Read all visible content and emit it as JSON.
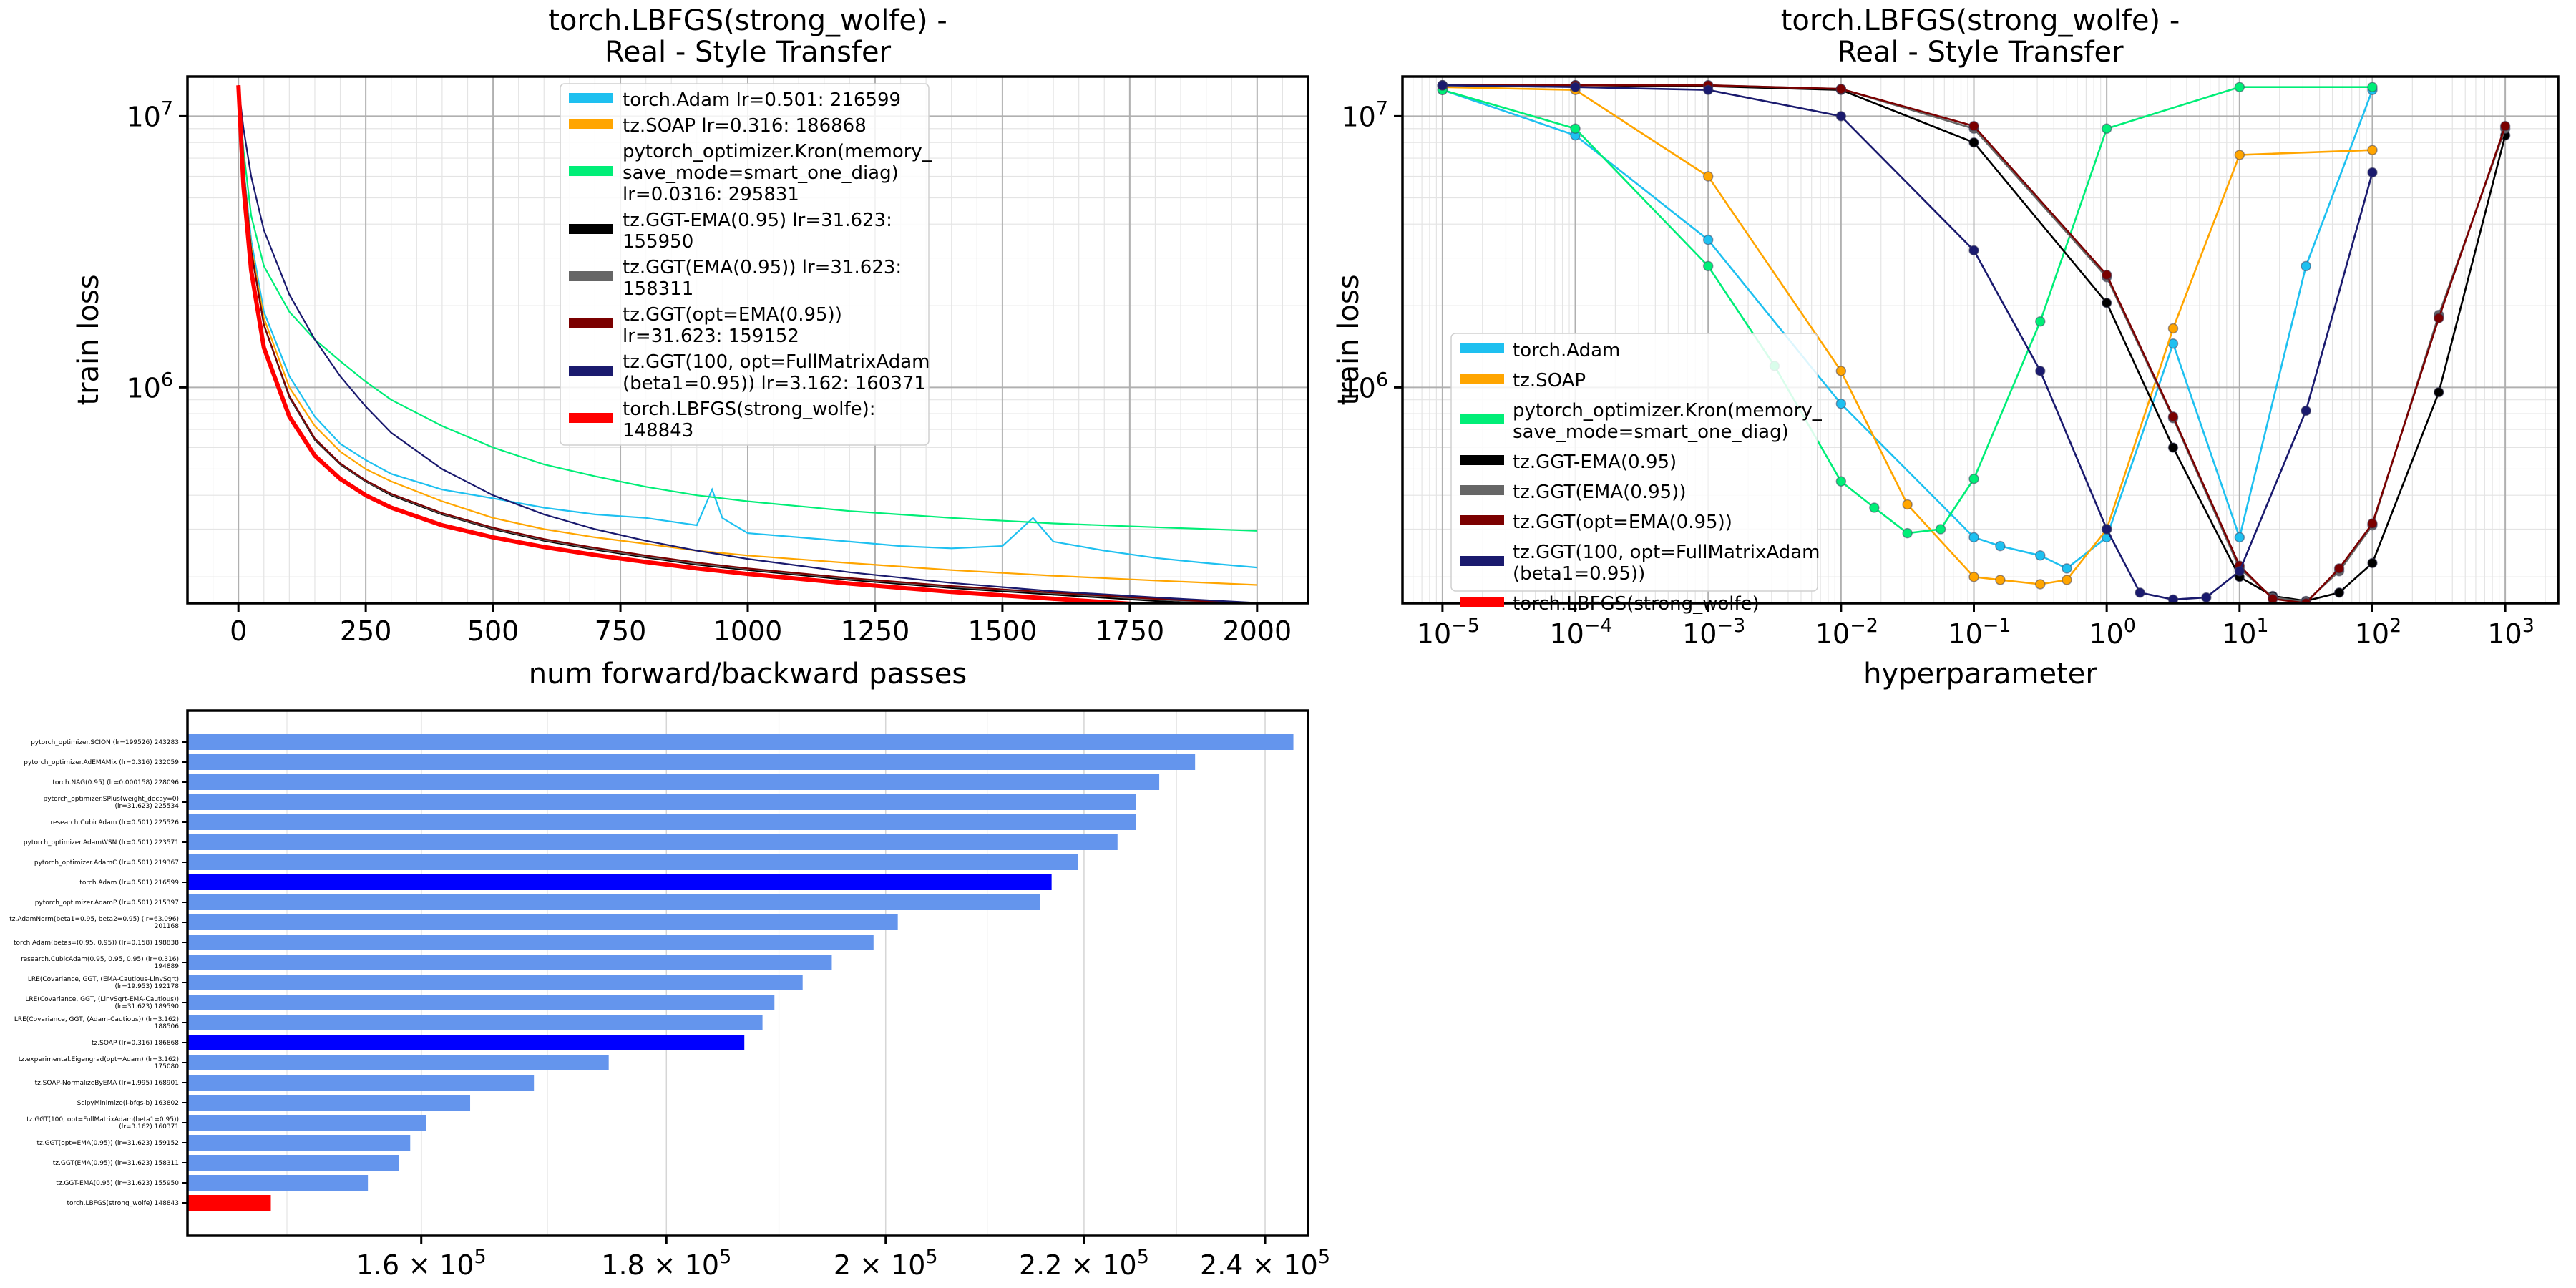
{
  "chart_data": [
    {
      "type": "line",
      "title": "torch.LBFGS(strong_wolfe) -\nReal - Style Transfer",
      "xlabel": "num forward/backward passes",
      "ylabel": "train loss",
      "yscale": "log",
      "xlim": [
        -100,
        2100
      ],
      "ylim": [
        160000,
        14000000
      ],
      "x_ticks": [
        0,
        250,
        500,
        750,
        1000,
        1250,
        1500,
        1750,
        2000
      ],
      "y_ticks": [
        {
          "value": 1000000,
          "label": "10",
          "exp": "6"
        },
        {
          "value": 10000000,
          "label": "10",
          "exp": "7"
        }
      ],
      "grid": true,
      "legend_position": "upper-center",
      "series": [
        {
          "name": "torch.Adam lr=0.501: 216599",
          "color": "#1ec0f0",
          "x": [
            0,
            10,
            25,
            50,
            100,
            150,
            200,
            250,
            300,
            400,
            500,
            600,
            700,
            800,
            900,
            930,
            950,
            1000,
            1100,
            1200,
            1300,
            1400,
            1500,
            1560,
            1600,
            1700,
            1800,
            1900,
            2000
          ],
          "y": [
            13000000,
            6500000,
            3500000,
            1900000,
            1100000,
            780000,
            620000,
            540000,
            480000,
            420000,
            390000,
            360000,
            340000,
            330000,
            310000,
            420000,
            330000,
            290000,
            280000,
            270000,
            260000,
            255000,
            260000,
            330000,
            270000,
            250000,
            235000,
            225000,
            216599
          ]
        },
        {
          "name": "tz.SOAP lr=0.316: 186868",
          "color": "#ffa500",
          "x": [
            0,
            10,
            25,
            50,
            100,
            150,
            200,
            250,
            300,
            400,
            500,
            600,
            700,
            800,
            900,
            1000,
            1200,
            1400,
            1600,
            1800,
            2000
          ],
          "y": [
            13000000,
            6400000,
            3300000,
            1800000,
            1000000,
            720000,
            580000,
            500000,
            450000,
            380000,
            330000,
            300000,
            280000,
            265000,
            250000,
            240000,
            225000,
            212000,
            202000,
            194000,
            186868
          ]
        },
        {
          "name": "pytorch_optimizer.Kron(memory_\nsave_mode=smart_one_diag)\nlr=0.0316: 295831",
          "color": "#00ee77",
          "x": [
            0,
            10,
            25,
            50,
            100,
            150,
            200,
            250,
            300,
            400,
            500,
            600,
            700,
            800,
            900,
            1000,
            1200,
            1400,
            1600,
            1800,
            2000
          ],
          "y": [
            13000000,
            7500000,
            4300000,
            2800000,
            1900000,
            1500000,
            1250000,
            1050000,
            900000,
            720000,
            600000,
            520000,
            470000,
            430000,
            400000,
            380000,
            350000,
            330000,
            315000,
            305000,
            295831
          ]
        },
        {
          "name": "tz.GGT-EMA(0.95) lr=31.623:\n155950",
          "color": "#000000",
          "x": [
            0,
            10,
            25,
            50,
            100,
            150,
            200,
            250,
            300,
            400,
            500,
            600,
            700,
            800,
            900,
            1000,
            1200,
            1400,
            1600,
            1800,
            2000
          ],
          "y": [
            13000000,
            6300000,
            3200000,
            1700000,
            920000,
            640000,
            520000,
            450000,
            400000,
            340000,
            300000,
            272000,
            252000,
            236000,
            222000,
            212000,
            195000,
            182000,
            172000,
            163000,
            155950
          ]
        },
        {
          "name": "tz.GGT(EMA(0.95)) lr=31.623:\n158311",
          "color": "#666666",
          "x": [
            0,
            10,
            25,
            50,
            100,
            150,
            200,
            250,
            300,
            400,
            500,
            600,
            700,
            800,
            900,
            1000,
            1200,
            1400,
            1600,
            1800,
            2000
          ],
          "y": [
            13000000,
            6300000,
            3200000,
            1700000,
            925000,
            645000,
            523000,
            452000,
            403000,
            342000,
            302000,
            274000,
            254000,
            238000,
            224000,
            214000,
            197000,
            184000,
            174000,
            165000,
            158311
          ]
        },
        {
          "name": "tz.GGT(opt=EMA(0.95))\nlr=31.623: 159152",
          "color": "#7b0000",
          "x": [
            0,
            10,
            25,
            50,
            100,
            150,
            200,
            250,
            300,
            400,
            500,
            600,
            700,
            800,
            900,
            1000,
            1200,
            1400,
            1600,
            1800,
            2000
          ],
          "y": [
            13000000,
            6300000,
            3200000,
            1700000,
            930000,
            648000,
            525000,
            454000,
            405000,
            344000,
            304000,
            276000,
            256000,
            240000,
            226000,
            215000,
            198000,
            185000,
            175000,
            166000,
            159152
          ]
        },
        {
          "name": "tz.GGT(100, opt=FullMatrixAdam\n(beta1=0.95)) lr=3.162: 160371",
          "color": "#1a1a6e",
          "x": [
            0,
            10,
            25,
            50,
            100,
            150,
            200,
            250,
            300,
            400,
            500,
            600,
            700,
            800,
            900,
            1000,
            1200,
            1400,
            1600,
            1800,
            2000
          ],
          "y": [
            13000000,
            9000000,
            6000000,
            3800000,
            2200000,
            1500000,
            1100000,
            850000,
            680000,
            500000,
            400000,
            340000,
            300000,
            272000,
            250000,
            233000,
            208000,
            190000,
            177000,
            168000,
            160371
          ]
        },
        {
          "name": "torch.LBFGS(strong_wolfe):\n148843",
          "color": "#ff0000",
          "x": [
            0,
            10,
            25,
            50,
            100,
            150,
            200,
            250,
            300,
            400,
            500,
            600,
            700,
            800,
            900,
            1000,
            1200,
            1400,
            1600,
            1800,
            2000
          ],
          "y": [
            13000000,
            5500000,
            2700000,
            1400000,
            780000,
            560000,
            460000,
            400000,
            360000,
            310000,
            280000,
            258000,
            241000,
            227000,
            215000,
            205000,
            189000,
            176000,
            166000,
            157000,
            148843
          ]
        }
      ]
    },
    {
      "type": "line",
      "title": "torch.LBFGS(strong_wolfe) -\nReal - Style Transfer",
      "xlabel": "hyperparameter",
      "ylabel": "train loss",
      "xscale": "log",
      "yscale": "log",
      "xlim": [
        5e-06,
        2500
      ],
      "ylim": [
        160000,
        14000000
      ],
      "x_ticks": [
        {
          "value": 1e-05,
          "label": "10",
          "exp": "−5"
        },
        {
          "value": 0.0001,
          "label": "10",
          "exp": "−4"
        },
        {
          "value": 0.001,
          "label": "10",
          "exp": "−3"
        },
        {
          "value": 0.01,
          "label": "10",
          "exp": "−2"
        },
        {
          "value": 0.1,
          "label": "10",
          "exp": "−1"
        },
        {
          "value": 1,
          "label": "10",
          "exp": "0"
        },
        {
          "value": 10,
          "label": "10",
          "exp": "1"
        },
        {
          "value": 100,
          "label": "10",
          "exp": "2"
        },
        {
          "value": 1000,
          "label": "10",
          "exp": "3"
        }
      ],
      "y_ticks": [
        {
          "value": 1000000,
          "label": "10",
          "exp": "6"
        },
        {
          "value": 10000000,
          "label": "10",
          "exp": "7"
        }
      ],
      "grid": true,
      "legend_position": "lower-left",
      "series": [
        {
          "name": "torch.Adam",
          "color": "#1ec0f0",
          "x": [
            1e-05,
            0.0001,
            0.001,
            0.01,
            0.1,
            0.158,
            0.316,
            0.501,
            1,
            3.162,
            10,
            31.623,
            100
          ],
          "y": [
            12500000,
            8500000,
            3500000,
            870000,
            280000,
            260000,
            240000,
            215000,
            280000,
            1450000,
            280000,
            2800000,
            12500000
          ]
        },
        {
          "name": "tz.SOAP",
          "color": "#ffa500",
          "x": [
            1e-05,
            0.0001,
            0.001,
            0.01,
            0.0316,
            0.1,
            0.158,
            0.316,
            0.501,
            1,
            3.162,
            10,
            100
          ],
          "y": [
            12800000,
            12500000,
            6000000,
            1150000,
            370000,
            200000,
            195000,
            188000,
            195000,
            300000,
            1650000,
            7200000,
            7500000
          ]
        },
        {
          "name": "pytorch_optimizer.Kron(memory_\nsave_mode=smart_one_diag)",
          "color": "#00ee77",
          "x": [
            1e-05,
            0.0001,
            0.001,
            0.00316,
            0.01,
            0.0178,
            0.0316,
            0.0562,
            0.1,
            0.316,
            1,
            10,
            100
          ],
          "y": [
            12500000,
            9000000,
            2800000,
            1200000,
            450000,
            360000,
            290000,
            300000,
            460000,
            1750000,
            9000000,
            12800000,
            12800000
          ]
        },
        {
          "name": "tz.GGT-EMA(0.95)",
          "color": "#000000",
          "x": [
            1e-05,
            0.0001,
            0.001,
            0.01,
            0.1,
            1,
            3.162,
            10,
            17.78,
            31.623,
            56.23,
            100,
            316.2,
            1000
          ],
          "y": [
            13000000,
            13000000,
            12900000,
            12500000,
            8000000,
            2050000,
            600000,
            200000,
            170000,
            163000,
            175000,
            225000,
            960000,
            8500000
          ]
        },
        {
          "name": "tz.GGT(EMA(0.95))",
          "color": "#666666",
          "x": [
            1e-05,
            0.0001,
            0.001,
            0.01,
            0.1,
            1,
            3.162,
            10,
            17.78,
            31.623,
            56.23,
            100,
            316.2,
            1000
          ],
          "y": [
            13000000,
            13000000,
            13000000,
            12600000,
            9000000,
            2550000,
            770000,
            215000,
            168000,
            162000,
            210000,
            310000,
            1850000,
            9000000
          ]
        },
        {
          "name": "tz.GGT(opt=EMA(0.95))",
          "color": "#7b0000",
          "x": [
            1e-05,
            0.0001,
            0.001,
            0.01,
            0.1,
            1,
            3.162,
            10,
            17.78,
            31.623,
            56.23,
            100,
            316.2,
            1000
          ],
          "y": [
            13000000,
            13000000,
            13000000,
            12600000,
            9200000,
            2600000,
            780000,
            220000,
            166000,
            160000,
            215000,
            315000,
            1800000,
            9200000
          ]
        },
        {
          "name": "tz.GGT(100, opt=FullMatrixAdam\n(beta1=0.95))",
          "color": "#1a1a6e",
          "x": [
            1e-05,
            0.0001,
            0.001,
            0.01,
            0.1,
            0.316,
            1,
            1.78,
            3.162,
            5.62,
            10,
            31.623,
            100
          ],
          "y": [
            13000000,
            12800000,
            12500000,
            10000000,
            3200000,
            1150000,
            300000,
            175000,
            165000,
            168000,
            210000,
            820000,
            6200000
          ]
        },
        {
          "name": "torch.LBFGS(strong_wolfe)",
          "color": "#ff0000",
          "x": [
            3e-06,
            3000
          ],
          "y": [
            148843,
            148843
          ]
        }
      ]
    },
    {
      "type": "bar",
      "orientation": "horizontal",
      "xscale": "log",
      "xlim": [
        143000,
        245000
      ],
      "x_ticks": [
        {
          "value": 160000,
          "label": "1.6 × 10",
          "exp": "5"
        },
        {
          "value": 180000,
          "label": "1.8 × 10",
          "exp": "5"
        },
        {
          "value": 200000,
          "label": "2 × 10",
          "exp": "5"
        },
        {
          "value": 220000,
          "label": "2.2 × 10",
          "exp": "5"
        },
        {
          "value": 240000,
          "label": "2.4 × 10",
          "exp": "5"
        }
      ],
      "grid": true,
      "bars": [
        {
          "label": "pytorch_optimizer.SCION (lr=199526) 243283",
          "value": 243283,
          "color": "#6495ed"
        },
        {
          "label": "pytorch_optimizer.AdEMAMix (lr=0.316) 232059",
          "value": 232059,
          "color": "#6495ed"
        },
        {
          "label": "torch.NAG(0.95) (lr=0.000158) 228096",
          "value": 228096,
          "color": "#6495ed"
        },
        {
          "label": "pytorch_optimizer.SPlus(weight_decay=0)\n(lr=31.623) 225534",
          "value": 225534,
          "color": "#6495ed"
        },
        {
          "label": "research.CubicAdam (lr=0.501) 225526",
          "value": 225526,
          "color": "#6495ed"
        },
        {
          "label": "pytorch_optimizer.AdamWSN (lr=0.501) 223571",
          "value": 223571,
          "color": "#6495ed"
        },
        {
          "label": "pytorch_optimizer.AdamC (lr=0.501) 219367",
          "value": 219367,
          "color": "#6495ed"
        },
        {
          "label": "torch.Adam (lr=0.501) 216599",
          "value": 216599,
          "color": "#0000ff"
        },
        {
          "label": "pytorch_optimizer.AdamP (lr=0.501) 215397",
          "value": 215397,
          "color": "#6495ed"
        },
        {
          "label": "tz.AdamNorm(beta1=0.95, beta2=0.95) (lr=63.096)\n201168",
          "value": 201168,
          "color": "#6495ed"
        },
        {
          "label": "torch.Adam(betas=(0.95, 0.95)) (lr=0.158) 198838",
          "value": 198838,
          "color": "#6495ed"
        },
        {
          "label": "research.CubicAdam(0.95, 0.95, 0.95) (lr=0.316)\n194889",
          "value": 194889,
          "color": "#6495ed"
        },
        {
          "label": "LRE(Covariance, GGT, (EMA-Cautious-LinvSqrt)\n(lr=19.953) 192178",
          "value": 192178,
          "color": "#6495ed"
        },
        {
          "label": "LRE(Covariance, GGT, (LinvSqrt-EMA-Cautious))\n(lr=31.623) 189590",
          "value": 189590,
          "color": "#6495ed"
        },
        {
          "label": "LRE(Covariance, GGT, (Adam-Cautious)) (lr=3.162)\n188506",
          "value": 188506,
          "color": "#6495ed"
        },
        {
          "label": "tz.SOAP (lr=0.316) 186868",
          "value": 186868,
          "color": "#0000ff"
        },
        {
          "label": "tz.experimental.Eigengrad(opt=Adam) (lr=3.162)\n175080",
          "value": 175080,
          "color": "#6495ed"
        },
        {
          "label": "tz.SOAP-NormalizeByEMA (lr=1.995) 168901",
          "value": 168901,
          "color": "#6495ed"
        },
        {
          "label": "ScipyMinimize(l-bfgs-b) 163802",
          "value": 163802,
          "color": "#6495ed"
        },
        {
          "label": "tz.GGT(100, opt=FullMatrixAdam(beta1=0.95))\n(lr=3.162) 160371",
          "value": 160371,
          "color": "#6495ed"
        },
        {
          "label": "tz.GGT(opt=EMA(0.95)) (lr=31.623) 159152",
          "value": 159152,
          "color": "#6495ed"
        },
        {
          "label": "tz.GGT(EMA(0.95)) (lr=31.623) 158311",
          "value": 158311,
          "color": "#6495ed"
        },
        {
          "label": "tz.GGT-EMA(0.95) (lr=31.623) 155950",
          "value": 155950,
          "color": "#6495ed"
        },
        {
          "label": "torch.LBFGS(strong_wolfe) 148843",
          "value": 148843,
          "color": "#ff0000"
        }
      ]
    }
  ]
}
